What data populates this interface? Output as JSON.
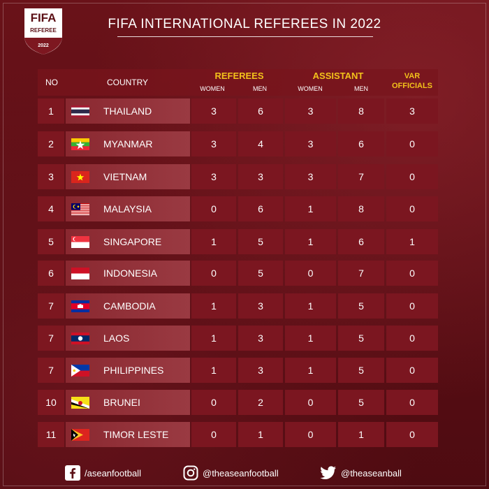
{
  "logo": {
    "title": "FIFA",
    "subtitle": "REFEREE",
    "year": "2022"
  },
  "title": "FIFA INTERNATIONAL REFEREES IN 2022",
  "header": {
    "no": "NO",
    "country": "COUNTRY",
    "referees": "REFEREES",
    "assistant": "ASSISTANT",
    "var_line1": "VAR",
    "var_line2": "OFFICIALS",
    "women": "WOMEN",
    "men": "MEN"
  },
  "rows": [
    {
      "no": "1",
      "country": "THAILAND",
      "flag": "thailand",
      "ref_women": "3",
      "ref_men": "6",
      "ast_women": "3",
      "ast_men": "8",
      "var": "3"
    },
    {
      "no": "2",
      "country": "MYANMAR",
      "flag": "myanmar",
      "ref_women": "3",
      "ref_men": "4",
      "ast_women": "3",
      "ast_men": "6",
      "var": "0"
    },
    {
      "no": "3",
      "country": "VIETNAM",
      "flag": "vietnam",
      "ref_women": "3",
      "ref_men": "3",
      "ast_women": "3",
      "ast_men": "7",
      "var": "0"
    },
    {
      "no": "4",
      "country": "MALAYSIA",
      "flag": "malaysia",
      "ref_women": "0",
      "ref_men": "6",
      "ast_women": "1",
      "ast_men": "8",
      "var": "0"
    },
    {
      "no": "5",
      "country": "SINGAPORE",
      "flag": "singapore",
      "ref_women": "1",
      "ref_men": "5",
      "ast_women": "1",
      "ast_men": "6",
      "var": "1"
    },
    {
      "no": "6",
      "country": "INDONESIA",
      "flag": "indonesia",
      "ref_women": "0",
      "ref_men": "5",
      "ast_women": "0",
      "ast_men": "7",
      "var": "0"
    },
    {
      "no": "7",
      "country": "CAMBODIA",
      "flag": "cambodia",
      "ref_women": "1",
      "ref_men": "3",
      "ast_women": "1",
      "ast_men": "5",
      "var": "0"
    },
    {
      "no": "7",
      "country": "LAOS",
      "flag": "laos",
      "ref_women": "1",
      "ref_men": "3",
      "ast_women": "1",
      "ast_men": "5",
      "var": "0"
    },
    {
      "no": "7",
      "country": "PHILIPPINES",
      "flag": "philippines",
      "ref_women": "1",
      "ref_men": "3",
      "ast_women": "1",
      "ast_men": "5",
      "var": "0"
    },
    {
      "no": "10",
      "country": "BRUNEI",
      "flag": "brunei",
      "ref_women": "0",
      "ref_men": "2",
      "ast_women": "0",
      "ast_men": "5",
      "var": "0"
    },
    {
      "no": "11",
      "country": "TIMOR LESTE",
      "flag": "timor",
      "ref_women": "0",
      "ref_men": "1",
      "ast_women": "0",
      "ast_men": "1",
      "var": "0"
    }
  ],
  "footer": {
    "facebook": "/aseanfootball",
    "instagram": "@theaseanfootball",
    "twitter": "@theaseanball"
  },
  "colors": {
    "background": "#5a0e14",
    "accent_yellow": "#f2c21b",
    "cell": "#7b1620"
  }
}
